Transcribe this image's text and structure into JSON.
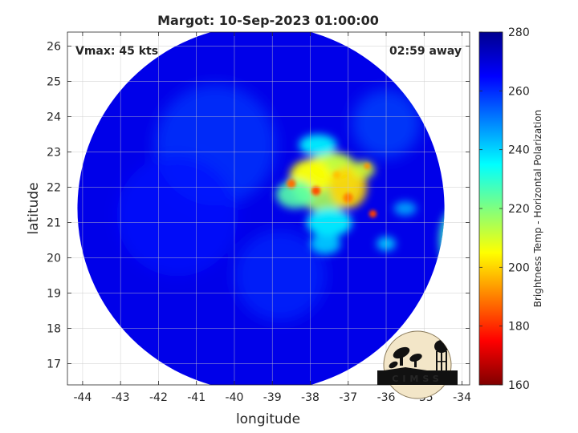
{
  "title": "Margot: 10-Sep-2023 01:00:00",
  "annotations": {
    "vmax": "Vmax: 45 kts",
    "away": "02:59 away"
  },
  "xaxis": {
    "label": "longitude",
    "range": [
      -44.4,
      -33.8
    ],
    "ticks": [
      -44,
      -43,
      -42,
      -41,
      -40,
      -39,
      -38,
      -37,
      -36,
      -35,
      -34
    ],
    "tick_labels": [
      "-44",
      "-43",
      "-42",
      "-41",
      "-40",
      "-39",
      "-38",
      "-37",
      "-36",
      "-35",
      "-34"
    ]
  },
  "yaxis": {
    "label": "latitude",
    "range": [
      16.4,
      26.4
    ],
    "ticks": [
      17,
      18,
      19,
      20,
      21,
      22,
      23,
      24,
      25,
      26
    ],
    "tick_labels": [
      "17",
      "18",
      "19",
      "20",
      "21",
      "22",
      "23",
      "24",
      "25",
      "26"
    ]
  },
  "colorbar": {
    "label": "Brightness Temp - Horizontal Polarization",
    "range": [
      160,
      280
    ],
    "ticks": [
      160,
      180,
      200,
      220,
      240,
      260,
      280
    ],
    "tick_labels": [
      "160",
      "180",
      "200",
      "220",
      "240",
      "260",
      "280"
    ],
    "colormap": "jet"
  },
  "swath": {
    "center_lon": -39.3,
    "center_lat": 21.4,
    "radius_deg": 5.2,
    "background_temp": 268
  },
  "convection": [
    {
      "lon": -37.6,
      "lat": 22.1,
      "rx": 0.9,
      "ry": 0.8,
      "temp": 215
    },
    {
      "lon": -37.4,
      "lat": 22.6,
      "rx": 0.6,
      "ry": 0.4,
      "temp": 212
    },
    {
      "lon": -38.0,
      "lat": 22.3,
      "rx": 0.55,
      "ry": 0.5,
      "temp": 205
    },
    {
      "lon": -37.0,
      "lat": 22.0,
      "rx": 0.5,
      "ry": 0.6,
      "temp": 200
    },
    {
      "lon": -38.4,
      "lat": 21.8,
      "rx": 0.5,
      "ry": 0.4,
      "temp": 225
    },
    {
      "lon": -37.5,
      "lat": 21.0,
      "rx": 0.6,
      "ry": 0.4,
      "temp": 235
    },
    {
      "lon": -36.6,
      "lat": 22.5,
      "rx": 0.3,
      "ry": 0.25,
      "temp": 210
    },
    {
      "lon": -37.8,
      "lat": 23.2,
      "rx": 0.5,
      "ry": 0.3,
      "temp": 235
    },
    {
      "lon": -37.6,
      "lat": 20.4,
      "rx": 0.4,
      "ry": 0.3,
      "temp": 240
    },
    {
      "lon": -34.2,
      "lat": 20.5,
      "rx": 0.4,
      "ry": 0.9,
      "temp": 228
    },
    {
      "lon": -36.0,
      "lat": 20.4,
      "rx": 0.25,
      "ry": 0.2,
      "temp": 240
    },
    {
      "lon": -35.5,
      "lat": 21.4,
      "rx": 0.3,
      "ry": 0.2,
      "temp": 245
    }
  ],
  "cores": [
    {
      "lon": -38.5,
      "lat": 22.1,
      "r": 0.12,
      "temp": 188
    },
    {
      "lon": -37.85,
      "lat": 21.9,
      "r": 0.12,
      "temp": 184
    },
    {
      "lon": -37.0,
      "lat": 21.7,
      "r": 0.13,
      "temp": 190
    },
    {
      "lon": -36.35,
      "lat": 21.25,
      "r": 0.1,
      "temp": 182
    },
    {
      "lon": -37.3,
      "lat": 22.35,
      "r": 0.1,
      "temp": 198
    },
    {
      "lon": -36.5,
      "lat": 22.6,
      "r": 0.08,
      "temp": 192
    }
  ],
  "spiral_band": [
    {
      "lon": -40.5,
      "lat": 23.2,
      "r": 1.6,
      "temp": 258
    },
    {
      "lon": -41.5,
      "lat": 21.2,
      "r": 1.6,
      "temp": 263
    },
    {
      "lon": -38.8,
      "lat": 19.5,
      "r": 1.2,
      "temp": 260
    },
    {
      "lon": -36.0,
      "lat": 23.8,
      "r": 0.9,
      "temp": 256
    }
  ],
  "logo": {
    "text": "CIMSS"
  }
}
